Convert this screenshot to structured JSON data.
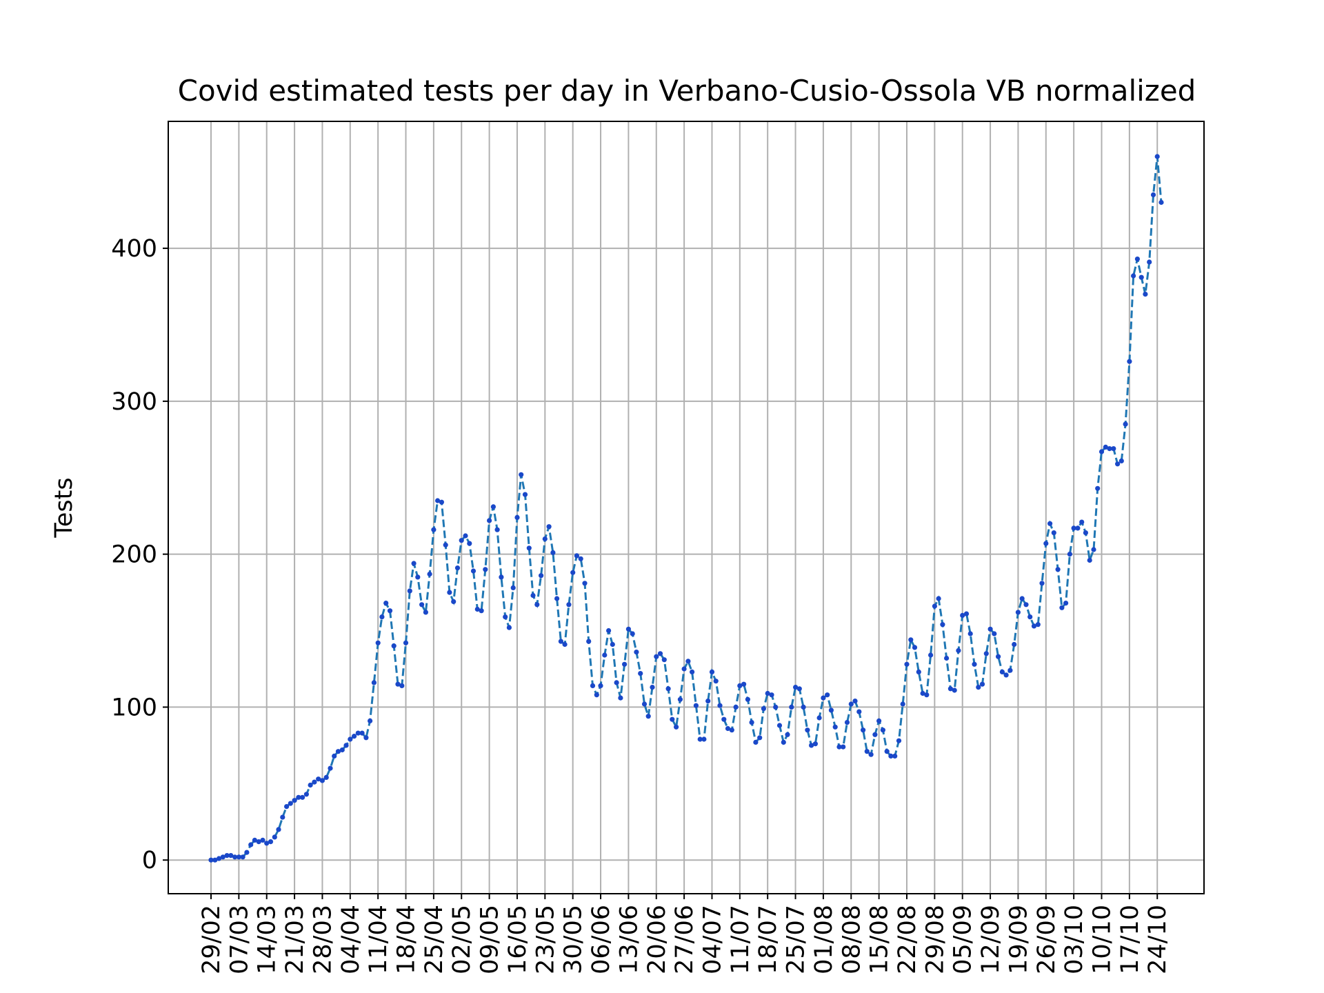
{
  "chart_data": {
    "type": "line",
    "title": "Covid estimated tests per day in Verbano-Cusio-Ossola VB normalized",
    "xlabel": "",
    "ylabel": "Tests",
    "x_start": "29/02",
    "x_tick_labels": [
      "29/02",
      "07/03",
      "14/03",
      "21/03",
      "28/03",
      "04/04",
      "11/04",
      "18/04",
      "25/04",
      "02/05",
      "09/05",
      "16/05",
      "23/05",
      "30/05",
      "06/06",
      "13/06",
      "20/06",
      "27/06",
      "04/07",
      "11/07",
      "18/07",
      "25/07",
      "01/08",
      "08/08",
      "15/08",
      "22/08",
      "29/08",
      "05/09",
      "12/09",
      "19/09",
      "26/09",
      "03/10",
      "10/10",
      "17/10",
      "24/10"
    ],
    "y_ticks": [
      0,
      100,
      200,
      300,
      400
    ],
    "ylim": [
      -22,
      483
    ],
    "grid": true,
    "colors": {
      "line": "#1f77b4",
      "marker": "#1a48c9",
      "grid": "#b0b0b0"
    },
    "series": [
      {
        "values": [
          0,
          0,
          1,
          2,
          3,
          3,
          2,
          2,
          2,
          5,
          10,
          13,
          12,
          13,
          11,
          12,
          15,
          20,
          28,
          35,
          37,
          39,
          41,
          41,
          43,
          49,
          51,
          53,
          52,
          54,
          60,
          68,
          71,
          72,
          75,
          79,
          81,
          83,
          83,
          80,
          91,
          116,
          142,
          159,
          168,
          163,
          140,
          115,
          114,
          142,
          176,
          194,
          185,
          167,
          162,
          187,
          216,
          235,
          234,
          206,
          175,
          169,
          191,
          209,
          212,
          207,
          189,
          164,
          163,
          190,
          222,
          231,
          216,
          185,
          159,
          152,
          178,
          224,
          252,
          239,
          204,
          173,
          167,
          186,
          210,
          218,
          201,
          171,
          143,
          141,
          167,
          188,
          199,
          197,
          181,
          143,
          114,
          108,
          114,
          134,
          150,
          141,
          116,
          106,
          128,
          151,
          148,
          136,
          122,
          102,
          94,
          113,
          133,
          135,
          131,
          112,
          92,
          87,
          105,
          125,
          130,
          123,
          101,
          79,
          79,
          104,
          123,
          117,
          101,
          92,
          86,
          85,
          100,
          114,
          115,
          105,
          90,
          77,
          80,
          99,
          109,
          108,
          100,
          88,
          77,
          82,
          100,
          113,
          112,
          100,
          85,
          75,
          76,
          93,
          106,
          108,
          98,
          87,
          74,
          74,
          90,
          102,
          104,
          97,
          85,
          71,
          69,
          82,
          91,
          85,
          71,
          68,
          68,
          78,
          102,
          128,
          144,
          139,
          123,
          109,
          108,
          134,
          166,
          171,
          154,
          132,
          112,
          111,
          137,
          160,
          161,
          148,
          128,
          113,
          115,
          135,
          151,
          148,
          133,
          123,
          121,
          124,
          141,
          162,
          171,
          167,
          159,
          153,
          154,
          181,
          207,
          220,
          214,
          190,
          165,
          168,
          200,
          217,
          217,
          221,
          214,
          196,
          203,
          243,
          267,
          270,
          269,
          269,
          259,
          261,
          285,
          326,
          382,
          393,
          381,
          370,
          391,
          435,
          460,
          430
        ]
      }
    ]
  }
}
